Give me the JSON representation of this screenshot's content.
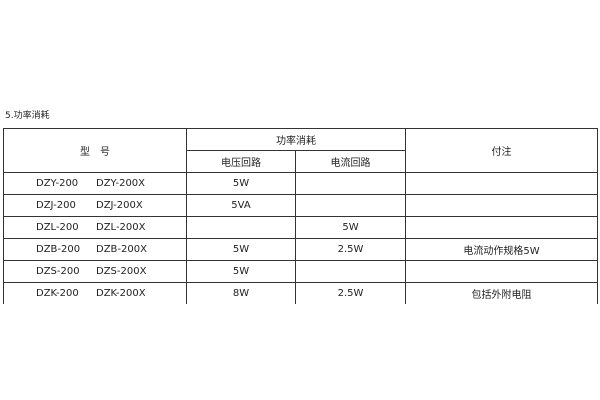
{
  "section_title": "5.功率消耗",
  "header": {
    "model": "型　号",
    "power": "功率消耗",
    "voltage_circuit": "电压回路",
    "current_circuit": "电流回路",
    "remarks": "付注"
  },
  "rows": [
    {
      "model_a": "DZY-200",
      "model_b": "DZY-200X",
      "voltage": "5W",
      "current": "",
      "remark": ""
    },
    {
      "model_a": "DZJ-200",
      "model_b": "DZJ-200X",
      "voltage": "5VA",
      "current": "",
      "remark": ""
    },
    {
      "model_a": "DZL-200",
      "model_b": "DZL-200X",
      "voltage": "",
      "current": "5W",
      "remark": ""
    },
    {
      "model_a": "DZB-200",
      "model_b": "DZB-200X",
      "voltage": "5W",
      "current": "2.5W",
      "remark": "电流动作规格5W"
    },
    {
      "model_a": "DZS-200",
      "model_b": "DZS-200X",
      "voltage": "5W",
      "current": "",
      "remark": ""
    },
    {
      "model_a": "DZK-200",
      "model_b": "DZK-200X",
      "voltage": "8W",
      "current": "2.5W",
      "remark": "包括外附电阻"
    }
  ]
}
